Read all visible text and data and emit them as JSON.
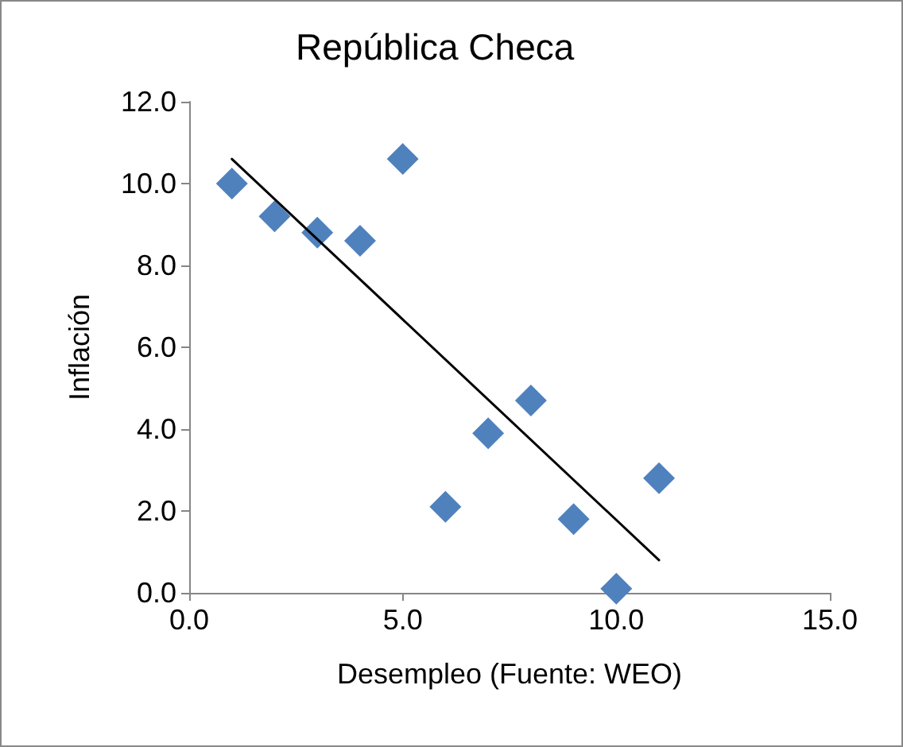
{
  "chart_data": {
    "type": "scatter",
    "title": "República Checa",
    "xlabel": "Desempleo (Fuente: WEO)",
    "ylabel": "Inflación",
    "xlim": [
      0,
      15
    ],
    "xticks": [
      {
        "value": 0,
        "label": "0.0"
      },
      {
        "value": 5,
        "label": "5.0"
      },
      {
        "value": 10,
        "label": "10.0"
      },
      {
        "value": 15,
        "label": "15.0"
      }
    ],
    "ylim": [
      0,
      12
    ],
    "yticks": [
      {
        "value": 0,
        "label": "0.0"
      },
      {
        "value": 2,
        "label": "2.0"
      },
      {
        "value": 4,
        "label": "4.0"
      },
      {
        "value": 6,
        "label": "6.0"
      },
      {
        "value": 8,
        "label": "8.0"
      },
      {
        "value": 10,
        "label": "10.0"
      },
      {
        "value": 12,
        "label": "12.0"
      }
    ],
    "grid": false,
    "marker": "diamond",
    "series": [
      {
        "color": "#4f81bd",
        "x": [
          1,
          2,
          3,
          4,
          5,
          6,
          7,
          8,
          9,
          10,
          11
        ],
        "values": [
          10.0,
          9.2,
          8.8,
          8.6,
          10.6,
          2.1,
          3.9,
          4.7,
          1.8,
          0.1,
          2.8
        ]
      },
      {
        "type": "line",
        "color": "#000000",
        "marker": "none",
        "line_style": "solid",
        "x": [
          1,
          11
        ],
        "values": [
          10.6,
          0.8
        ]
      }
    ]
  }
}
